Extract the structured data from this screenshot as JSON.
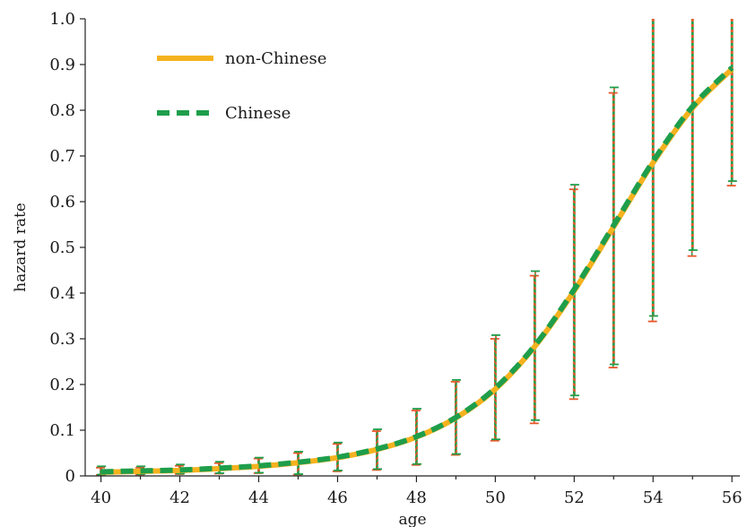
{
  "chart_data": {
    "type": "line",
    "xlabel": "age",
    "ylabel": "hazard rate",
    "xlim": [
      39.6,
      56.2
    ],
    "ylim": [
      0,
      1.0
    ],
    "x_ticks": [
      40,
      42,
      44,
      46,
      48,
      50,
      52,
      54,
      56
    ],
    "x_tick_labels": [
      "40",
      "42",
      "44",
      "46",
      "48",
      "50",
      "52",
      "54",
      "56"
    ],
    "y_ticks": [
      0,
      0.1,
      0.2,
      0.3,
      0.4,
      0.5,
      0.6,
      0.7,
      0.8,
      0.9,
      1.0
    ],
    "y_tick_labels": [
      "0",
      "0.1",
      "0.2",
      "0.3",
      "0.4",
      "0.5",
      "0.6",
      "0.7",
      "0.8",
      "0.9",
      "1.0"
    ],
    "legend_position": "top-left",
    "x": [
      40,
      41,
      42,
      43,
      44,
      45,
      46,
      47,
      48,
      49,
      50,
      51,
      52,
      53,
      54,
      55,
      56
    ],
    "series": [
      {
        "name": "non-Chinese",
        "style": "solid",
        "color": "#F5B21E",
        "values": [
          0.008,
          0.01,
          0.012,
          0.016,
          0.021,
          0.029,
          0.04,
          0.058,
          0.085,
          0.127,
          0.19,
          0.283,
          0.405,
          0.545,
          0.685,
          0.805,
          0.89
        ],
        "ci_lower": [
          0.002,
          0.003,
          0.004,
          0.005,
          0.006,
          0.003,
          0.01,
          0.013,
          0.024,
          0.046,
          0.077,
          0.115,
          0.168,
          0.237,
          0.338,
          0.481,
          0.635
        ],
        "ci_upper": [
          0.018,
          0.018,
          0.022,
          0.028,
          0.038,
          0.05,
          0.07,
          0.098,
          0.143,
          0.206,
          0.3,
          0.438,
          0.627,
          0.838,
          1.0,
          1.0,
          1.0
        ]
      },
      {
        "name": "Chinese",
        "style": "dashed",
        "color": "#1E9E4B",
        "values": [
          0.009,
          0.011,
          0.013,
          0.017,
          0.022,
          0.03,
          0.041,
          0.059,
          0.086,
          0.128,
          0.192,
          0.285,
          0.408,
          0.548,
          0.688,
          0.808,
          0.893
        ],
        "ci_lower": [
          0.003,
          0.004,
          0.005,
          0.006,
          0.007,
          0.004,
          0.012,
          0.015,
          0.026,
          0.048,
          0.08,
          0.122,
          0.176,
          0.244,
          0.35,
          0.494,
          0.645
        ],
        "ci_upper": [
          0.021,
          0.021,
          0.025,
          0.031,
          0.04,
          0.053,
          0.073,
          0.102,
          0.147,
          0.21,
          0.308,
          0.448,
          0.637,
          0.85,
          1.0,
          1.0,
          1.0
        ]
      }
    ],
    "errorbar_colors": {
      "green": "#1E9E4B",
      "orange": "#E8572A"
    }
  }
}
